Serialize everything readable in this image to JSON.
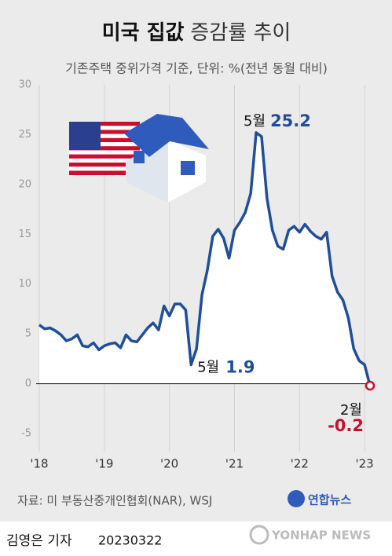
{
  "chart_data": {
    "type": "line",
    "title": "미국 집값",
    "title_rest": "증감률 추이",
    "subtitle": "기존주택 중위가격 기준, 단위: %(전년 동월 대비)",
    "categories": [
      "'18",
      null,
      null,
      null,
      null,
      null,
      null,
      null,
      null,
      null,
      null,
      null,
      "'19",
      null,
      null,
      null,
      null,
      null,
      null,
      null,
      null,
      null,
      null,
      null,
      "'20",
      null,
      null,
      null,
      null,
      null,
      null,
      null,
      null,
      null,
      null,
      null,
      "'21",
      null,
      null,
      null,
      null,
      null,
      null,
      null,
      null,
      null,
      null,
      null,
      "'22",
      null,
      null,
      null,
      null,
      null,
      null,
      null,
      null,
      null,
      null,
      null,
      "'23",
      null
    ],
    "series": [
      {
        "color": "#1f4e9a",
        "values": [
          5.9,
          5.5,
          5.6,
          5.3,
          4.9,
          4.3,
          4.5,
          4.9,
          3.8,
          3.7,
          4.1,
          3.4,
          3.8,
          4.0,
          4.1,
          3.6,
          4.9,
          4.3,
          4.2,
          4.9,
          5.6,
          6.1,
          5.4,
          7.8,
          6.8,
          8.0,
          8.0,
          7.4,
          1.9,
          3.5,
          8.9,
          11.4,
          14.8,
          15.5,
          14.6,
          12.6,
          15.4,
          16.2,
          17.2,
          19.1,
          25.2,
          24.8,
          18.6,
          15.4,
          13.8,
          13.5,
          15.4,
          15.8,
          15.2,
          16.0,
          15.3,
          14.8,
          14.5,
          15.2,
          10.8,
          9.2,
          8.4,
          6.6,
          3.5,
          2.3,
          1.9,
          -0.2
        ],
        "point_labels": [
          null,
          null,
          null,
          null,
          null,
          null,
          null,
          null,
          null,
          null,
          null,
          null,
          null,
          null,
          null,
          null,
          null,
          null,
          null,
          null,
          null,
          null,
          null,
          null,
          null,
          null,
          null,
          null,
          "5월",
          null,
          null,
          null,
          null,
          null,
          null,
          null,
          null,
          null,
          null,
          null,
          "5월",
          null,
          null,
          null,
          null,
          null,
          null,
          null,
          null,
          null,
          null,
          null,
          null,
          null,
          null,
          null,
          null,
          null,
          null,
          null,
          null,
          "2월"
        ],
        "value_labels": [
          null,
          null,
          null,
          null,
          null,
          null,
          null,
          null,
          null,
          null,
          null,
          null,
          null,
          null,
          null,
          null,
          null,
          null,
          null,
          null,
          null,
          null,
          null,
          null,
          null,
          null,
          null,
          null,
          "1.9",
          null,
          null,
          null,
          null,
          null,
          null,
          null,
          null,
          null,
          null,
          null,
          "25.2",
          null,
          null,
          null,
          null,
          null,
          null,
          null,
          null,
          null,
          null,
          null,
          null,
          null,
          null,
          null,
          null,
          null,
          null,
          null,
          null,
          "-0.2"
        ]
      }
    ],
    "highlight_color": "#c8102e",
    "ylim": [
      -5,
      30
    ],
    "yticks": [
      -5,
      0,
      5,
      10,
      15,
      20,
      25,
      30
    ],
    "grid": true,
    "source": "자료: 미 부동산중개인협회(NAR), WSJ",
    "logo": "연합뉴스",
    "logo_en": "YONHAP NEWS",
    "reporter": "김영은 기자",
    "date": "20230322"
  }
}
